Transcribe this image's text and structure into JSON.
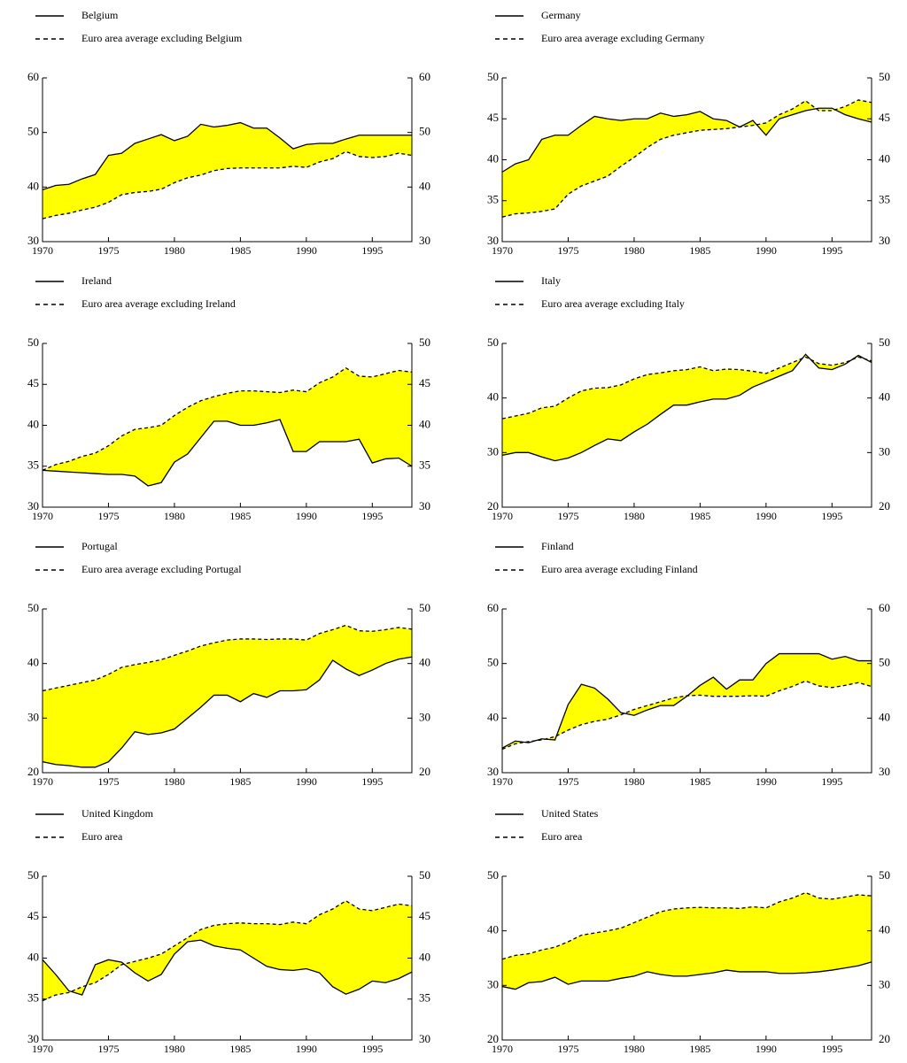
{
  "chart_data": [
    {
      "type": "line",
      "fill_between": "#ffff00",
      "x": [
        1970,
        1971,
        1972,
        1973,
        1974,
        1975,
        1976,
        1977,
        1978,
        1979,
        1980,
        1981,
        1982,
        1983,
        1984,
        1985,
        1986,
        1987,
        1988,
        1989,
        1990,
        1991,
        1992,
        1993,
        1994,
        1995,
        1996,
        1997,
        1998
      ],
      "series": [
        {
          "name": "Belgium",
          "color": "#000000",
          "dash": "solid",
          "values": [
            39.5,
            40.3,
            40.5,
            41.5,
            42.3,
            45.8,
            46.2,
            48,
            48.8,
            49.6,
            48.5,
            49.3,
            51.5,
            51,
            51.3,
            51.8,
            50.8,
            50.8,
            49,
            47,
            47.8,
            48,
            48,
            48.8,
            49.5,
            49.5,
            49.5,
            49.5,
            49.5
          ]
        },
        {
          "name": "Euro area average excluding Belgium",
          "color": "#000000",
          "dash": "dashed",
          "values": [
            34.2,
            34.8,
            35.2,
            35.8,
            36.3,
            37.2,
            38.6,
            39,
            39.2,
            39.6,
            40.8,
            41.7,
            42.2,
            43,
            43.4,
            43.5,
            43.5,
            43.5,
            43.5,
            43.8,
            43.6,
            44.6,
            45.2,
            46.5,
            45.6,
            45.4,
            45.6,
            46.2,
            45.8
          ]
        }
      ],
      "xlim": [
        1970,
        1998
      ],
      "xticks": [
        1970,
        1975,
        1980,
        1985,
        1990,
        1995
      ],
      "ylim": [
        30,
        60
      ],
      "yticks": [
        30,
        40,
        50,
        60
      ],
      "mirror_y": true
    },
    {
      "type": "line",
      "fill_between": "#ffff00",
      "x": [
        1970,
        1971,
        1972,
        1973,
        1974,
        1975,
        1976,
        1977,
        1978,
        1979,
        1980,
        1981,
        1982,
        1983,
        1984,
        1985,
        1986,
        1987,
        1988,
        1989,
        1990,
        1991,
        1992,
        1993,
        1994,
        1995,
        1996,
        1997,
        1998
      ],
      "series": [
        {
          "name": "Germany",
          "color": "#000000",
          "dash": "solid",
          "values": [
            38.5,
            39.5,
            40,
            42.5,
            43,
            43,
            44.2,
            45.3,
            45,
            44.8,
            45,
            45,
            45.7,
            45.3,
            45.5,
            45.9,
            45,
            44.8,
            44,
            44.8,
            43,
            45,
            45.5,
            46,
            46.3,
            46.3,
            45.5,
            45,
            44.6
          ]
        },
        {
          "name": "Euro area average excluding Germany",
          "color": "#000000",
          "dash": "dashed",
          "values": [
            33,
            33.4,
            33.5,
            33.7,
            34,
            35.8,
            36.8,
            37.4,
            38,
            39.2,
            40.3,
            41.5,
            42.5,
            43,
            43.3,
            43.6,
            43.7,
            43.8,
            44,
            44.2,
            44.5,
            45.5,
            46.2,
            47.2,
            46,
            46,
            46.5,
            47.3,
            47
          ]
        }
      ],
      "xlim": [
        1970,
        1998
      ],
      "xticks": [
        1970,
        1975,
        1980,
        1985,
        1990,
        1995
      ],
      "ylim": [
        30,
        50
      ],
      "yticks": [
        30,
        35,
        40,
        45,
        50
      ],
      "mirror_y": true
    },
    {
      "type": "line",
      "fill_between": "#ffff00",
      "x": [
        1970,
        1971,
        1972,
        1973,
        1974,
        1975,
        1976,
        1977,
        1978,
        1979,
        1980,
        1981,
        1982,
        1983,
        1984,
        1985,
        1986,
        1987,
        1988,
        1989,
        1990,
        1991,
        1992,
        1993,
        1994,
        1995,
        1996,
        1997,
        1998
      ],
      "series": [
        {
          "name": "Ireland",
          "color": "#000000",
          "dash": "solid",
          "values": [
            34.5,
            34.4,
            34.3,
            34.2,
            34.1,
            34,
            34,
            33.8,
            32.6,
            33,
            35.5,
            36.5,
            38.5,
            40.5,
            40.5,
            40,
            40,
            40.3,
            40.7,
            36.8,
            36.8,
            38,
            38,
            38,
            38.3,
            35.4,
            35.9,
            36,
            35
          ]
        },
        {
          "name": "Euro area average excluding Ireland",
          "color": "#000000",
          "dash": "dashed",
          "values": [
            34.5,
            35.2,
            35.6,
            36.2,
            36.6,
            37.5,
            38.7,
            39.5,
            39.7,
            40,
            41.2,
            42.2,
            43,
            43.5,
            43.9,
            44.2,
            44.2,
            44.1,
            44,
            44.3,
            44.1,
            45.2,
            45.9,
            47,
            46,
            45.9,
            46.3,
            46.7,
            46.5
          ]
        }
      ],
      "xlim": [
        1970,
        1998
      ],
      "xticks": [
        1970,
        1975,
        1980,
        1985,
        1990,
        1995
      ],
      "ylim": [
        30,
        50
      ],
      "yticks": [
        30,
        35,
        40,
        45,
        50
      ],
      "mirror_y": true
    },
    {
      "type": "line",
      "fill_between": "#ffff00",
      "x": [
        1970,
        1971,
        1972,
        1973,
        1974,
        1975,
        1976,
        1977,
        1978,
        1979,
        1980,
        1981,
        1982,
        1983,
        1984,
        1985,
        1986,
        1987,
        1988,
        1989,
        1990,
        1991,
        1992,
        1993,
        1994,
        1995,
        1996,
        1997,
        1998
      ],
      "series": [
        {
          "name": "Italy",
          "color": "#000000",
          "dash": "solid",
          "values": [
            29.5,
            30,
            30,
            29.2,
            28.5,
            29,
            30,
            31.3,
            32.5,
            32.2,
            33.8,
            35.2,
            37,
            38.7,
            38.7,
            39.3,
            39.8,
            39.8,
            40.5,
            42,
            43,
            44,
            45,
            48,
            45.5,
            45.2,
            46.2,
            47.8,
            46.5
          ]
        },
        {
          "name": "Euro area average excluding Italy",
          "color": "#000000",
          "dash": "dashed",
          "values": [
            36.2,
            36.7,
            37.2,
            38.2,
            38.5,
            40,
            41.3,
            41.8,
            41.9,
            42.4,
            43.5,
            44.3,
            44.6,
            45,
            45.2,
            45.7,
            45,
            45.3,
            45.2,
            44.9,
            44.5,
            45.5,
            46.5,
            47.5,
            46.3,
            46,
            46.5,
            47.5,
            46.8
          ]
        }
      ],
      "xlim": [
        1970,
        1998
      ],
      "xticks": [
        1970,
        1975,
        1980,
        1985,
        1990,
        1995
      ],
      "ylim": [
        20,
        50
      ],
      "yticks": [
        20,
        30,
        40,
        50
      ],
      "mirror_y": true
    },
    {
      "type": "line",
      "fill_between": "#ffff00",
      "x": [
        1970,
        1971,
        1972,
        1973,
        1974,
        1975,
        1976,
        1977,
        1978,
        1979,
        1980,
        1981,
        1982,
        1983,
        1984,
        1985,
        1986,
        1987,
        1988,
        1989,
        1990,
        1991,
        1992,
        1993,
        1994,
        1995,
        1996,
        1997,
        1998
      ],
      "series": [
        {
          "name": "Portugal",
          "color": "#000000",
          "dash": "solid",
          "values": [
            22,
            21.5,
            21.3,
            21,
            21,
            22,
            24.5,
            27.5,
            27,
            27.3,
            28,
            30,
            32,
            34.2,
            34.2,
            33,
            34.5,
            33.8,
            35,
            35,
            35.2,
            37,
            40.6,
            39,
            37.8,
            38.8,
            40,
            40.8,
            41.2
          ]
        },
        {
          "name": "Euro area average excluding Portugal",
          "color": "#000000",
          "dash": "dashed",
          "values": [
            35,
            35.5,
            36,
            36.5,
            37,
            38,
            39.3,
            39.8,
            40.2,
            40.7,
            41.5,
            42.3,
            43.2,
            43.8,
            44.3,
            44.5,
            44.5,
            44.4,
            44.5,
            44.5,
            44.3,
            45.5,
            46.2,
            47,
            46,
            45.9,
            46.2,
            46.6,
            46.3
          ]
        }
      ],
      "xlim": [
        1970,
        1998
      ],
      "xticks": [
        1970,
        1975,
        1980,
        1985,
        1990,
        1995
      ],
      "ylim": [
        20,
        50
      ],
      "yticks": [
        20,
        30,
        40,
        50
      ],
      "mirror_y": true
    },
    {
      "type": "line",
      "fill_between": "#ffff00",
      "x": [
        1970,
        1971,
        1972,
        1973,
        1974,
        1975,
        1976,
        1977,
        1978,
        1979,
        1980,
        1981,
        1982,
        1983,
        1984,
        1985,
        1986,
        1987,
        1988,
        1989,
        1990,
        1991,
        1992,
        1993,
        1994,
        1995,
        1996,
        1997,
        1998
      ],
      "series": [
        {
          "name": "Finland",
          "color": "#000000",
          "dash": "solid",
          "values": [
            34.5,
            35.8,
            35.5,
            36.2,
            36,
            42.5,
            46.2,
            45.5,
            43.5,
            41,
            40.5,
            41.5,
            42.3,
            42.3,
            44,
            46,
            47.5,
            45.3,
            47,
            47,
            50,
            51.8,
            51.8,
            51.8,
            51.8,
            50.8,
            51.3,
            50.5,
            50.5
          ]
        },
        {
          "name": "Euro area average excluding Finland",
          "color": "#000000",
          "dash": "dashed",
          "values": [
            34.3,
            35.3,
            35.7,
            36,
            36.6,
            37.8,
            38.8,
            39.4,
            39.8,
            40.6,
            41.6,
            42.3,
            43,
            43.7,
            44.1,
            44.2,
            44,
            44,
            44,
            44.1,
            44,
            45,
            45.8,
            46.8,
            45.9,
            45.6,
            46,
            46.5,
            45.8
          ]
        }
      ],
      "xlim": [
        1970,
        1998
      ],
      "xticks": [
        1970,
        1975,
        1980,
        1985,
        1990,
        1995
      ],
      "ylim": [
        30,
        60
      ],
      "yticks": [
        30,
        40,
        50,
        60
      ],
      "mirror_y": true
    },
    {
      "type": "line",
      "fill_between": "#ffff00",
      "x": [
        1970,
        1971,
        1972,
        1973,
        1974,
        1975,
        1976,
        1977,
        1978,
        1979,
        1980,
        1981,
        1982,
        1983,
        1984,
        1985,
        1986,
        1987,
        1988,
        1989,
        1990,
        1991,
        1992,
        1993,
        1994,
        1995,
        1996,
        1997,
        1998
      ],
      "series": [
        {
          "name": "United Kingdom",
          "color": "#000000",
          "dash": "solid",
          "values": [
            39.8,
            38,
            36,
            35.5,
            39.2,
            39.8,
            39.5,
            38.2,
            37.2,
            38,
            40.5,
            42,
            42.2,
            41.5,
            41.2,
            41,
            40,
            39,
            38.6,
            38.5,
            38.7,
            38.2,
            36.5,
            35.6,
            36.2,
            37.2,
            37,
            37.5,
            38.3
          ]
        },
        {
          "name": "Euro area",
          "color": "#000000",
          "dash": "dashed",
          "values": [
            34.8,
            35.5,
            35.8,
            36.5,
            37,
            38,
            39.2,
            39.6,
            40,
            40.5,
            41.5,
            42.5,
            43.5,
            44,
            44.2,
            44.3,
            44.2,
            44.2,
            44.1,
            44.4,
            44.2,
            45.3,
            46,
            47,
            46,
            45.8,
            46.2,
            46.6,
            46.4
          ]
        }
      ],
      "xlim": [
        1970,
        1998
      ],
      "xticks": [
        1970,
        1975,
        1980,
        1985,
        1990,
        1995
      ],
      "ylim": [
        30,
        50
      ],
      "yticks": [
        30,
        35,
        40,
        45,
        50
      ],
      "mirror_y": true
    },
    {
      "type": "line",
      "fill_between": "#ffff00",
      "x": [
        1970,
        1971,
        1972,
        1973,
        1974,
        1975,
        1976,
        1977,
        1978,
        1979,
        1980,
        1981,
        1982,
        1983,
        1984,
        1985,
        1986,
        1987,
        1988,
        1989,
        1990,
        1991,
        1992,
        1993,
        1994,
        1995,
        1996,
        1997,
        1998
      ],
      "series": [
        {
          "name": "United States",
          "color": "#000000",
          "dash": "solid",
          "values": [
            29.8,
            29.3,
            30.5,
            30.7,
            31.5,
            30.2,
            30.8,
            30.8,
            30.8,
            31.3,
            31.7,
            32.5,
            32,
            31.7,
            31.7,
            32,
            32.3,
            32.8,
            32.5,
            32.5,
            32.5,
            32.2,
            32.2,
            32.3,
            32.5,
            32.8,
            33.2,
            33.6,
            34.3
          ]
        },
        {
          "name": "Euro area",
          "color": "#000000",
          "dash": "dashed",
          "values": [
            34.8,
            35.5,
            35.8,
            36.5,
            37,
            38,
            39.2,
            39.6,
            40,
            40.5,
            41.5,
            42.5,
            43.5,
            44,
            44.2,
            44.3,
            44.2,
            44.2,
            44.1,
            44.4,
            44.2,
            45.3,
            46,
            47,
            46,
            45.8,
            46.2,
            46.6,
            46.4
          ]
        }
      ],
      "xlim": [
        1970,
        1998
      ],
      "xticks": [
        1970,
        1975,
        1980,
        1985,
        1990,
        1995
      ],
      "ylim": [
        20,
        50
      ],
      "yticks": [
        20,
        30,
        40,
        50
      ],
      "mirror_y": true
    }
  ]
}
